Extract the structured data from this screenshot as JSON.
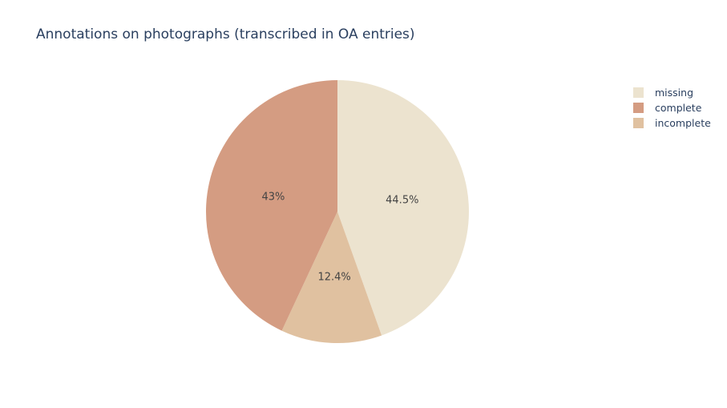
{
  "chart_data": {
    "type": "pie",
    "title": "Annotations on photographs (transcribed in OA entries)",
    "slices": [
      {
        "label": "missing",
        "value": 44.5,
        "display": "44.5%",
        "color": "#ece3cf"
      },
      {
        "label": "incomplete",
        "value": 12.4,
        "display": "12.4%",
        "color": "#e0c1a0"
      },
      {
        "label": "complete",
        "value": 43.0,
        "display": "43%",
        "color": "#d49c82"
      }
    ],
    "legend": [
      {
        "label": "missing",
        "color": "#ece3cf"
      },
      {
        "label": "complete",
        "color": "#d49c82"
      },
      {
        "label": "incomplete",
        "color": "#e0c1a0"
      }
    ],
    "legend_position": "top-right",
    "direction": "clockwise",
    "start": "top"
  }
}
